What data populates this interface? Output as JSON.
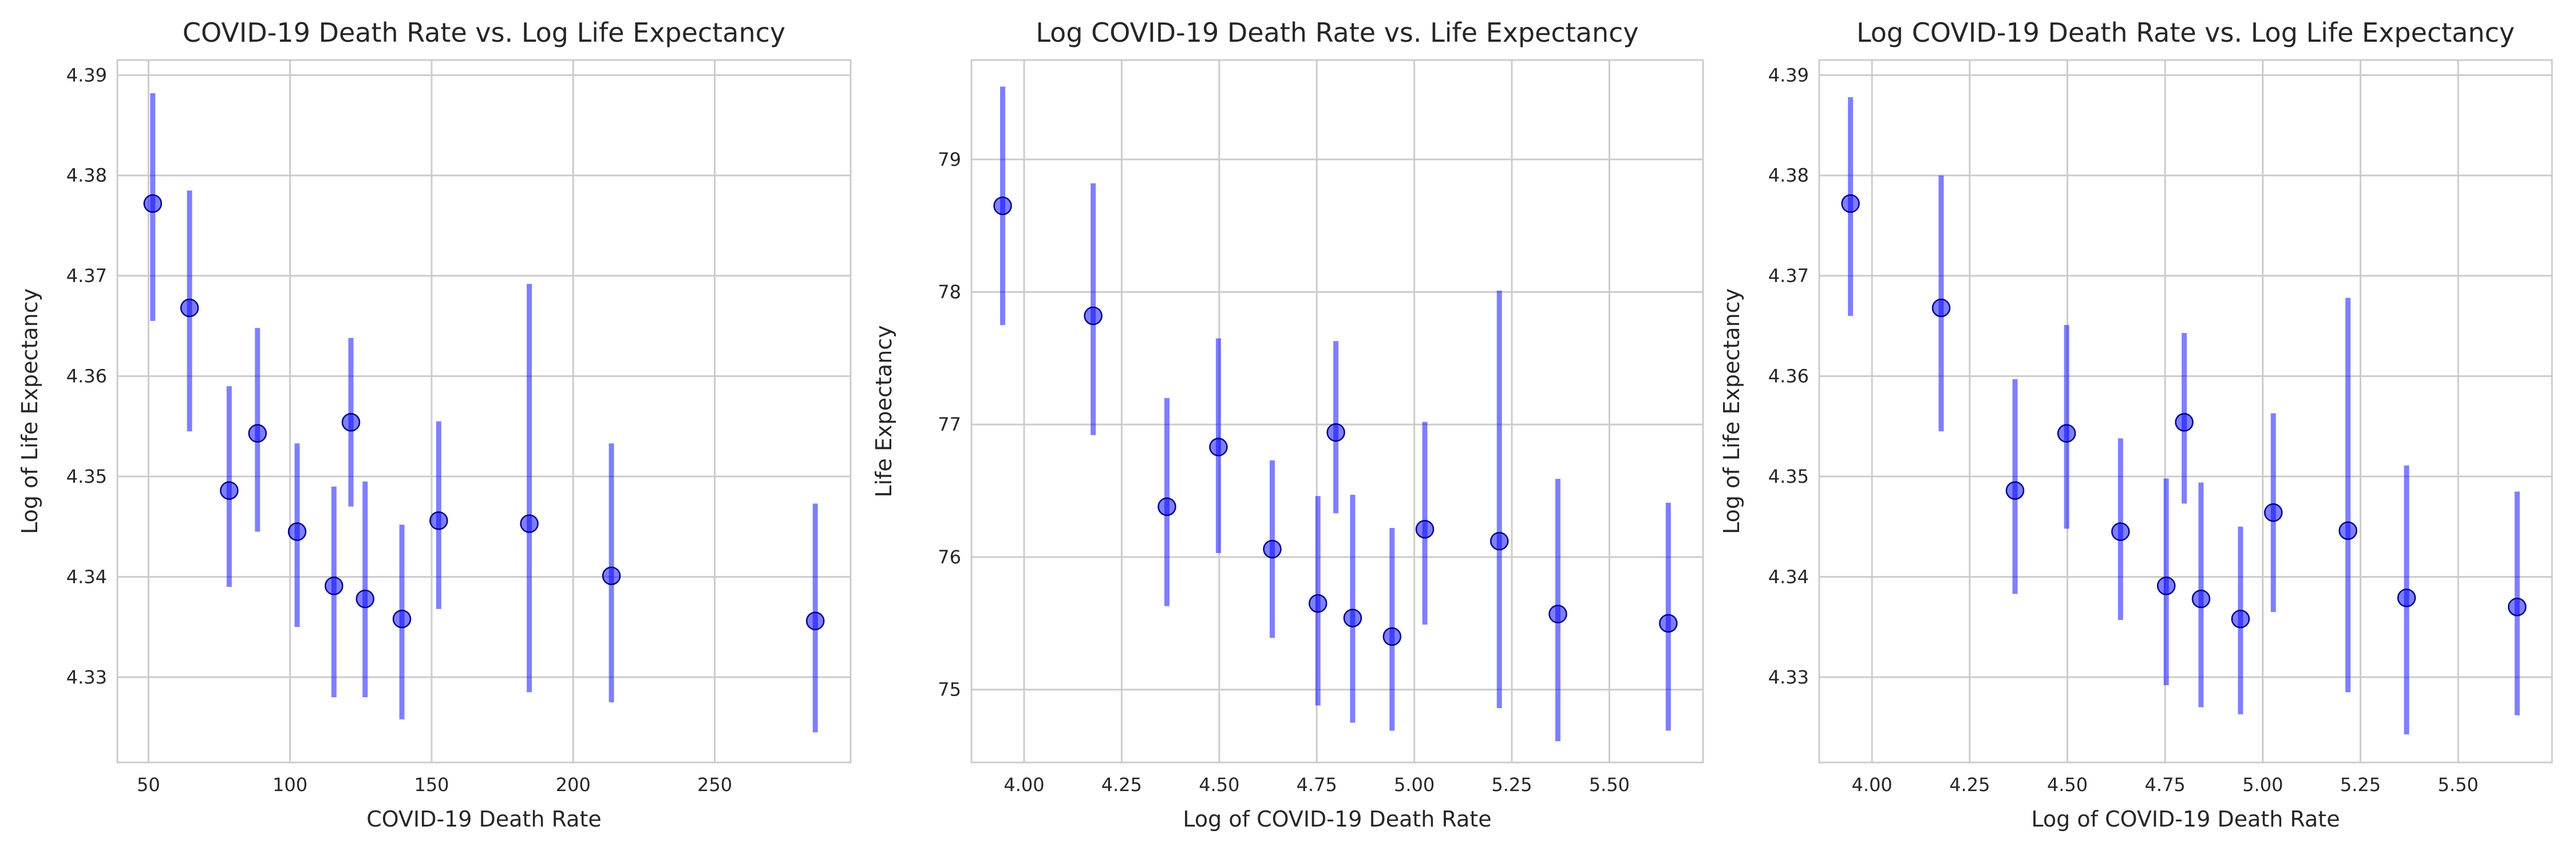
{
  "chart_data": [
    {
      "type": "scatter",
      "title": "COVID-19 Death Rate vs. Log Life Expectancy",
      "xlabel": "COVID-19 Death Rate",
      "ylabel": "Log of Life Expectancy",
      "xlim": [
        39,
        298
      ],
      "ylim": [
        4.3215,
        4.3915
      ],
      "xticks": [
        50,
        100,
        150,
        200,
        250
      ],
      "xtick_labels": [
        "50",
        "100",
        "150",
        "200",
        "250"
      ],
      "yticks": [
        4.33,
        4.34,
        4.35,
        4.36,
        4.37,
        4.38,
        4.39
      ],
      "ytick_labels": [
        "4.33",
        "4.34",
        "4.35",
        "4.36",
        "4.37",
        "4.38",
        "4.39"
      ],
      "grid": true,
      "points": [
        {
          "x": 51.5,
          "y": 4.3772,
          "err_low": 4.3655,
          "err_high": 4.3882
        },
        {
          "x": 64.5,
          "y": 4.3668,
          "err_low": 4.3545,
          "err_high": 4.3785
        },
        {
          "x": 78.5,
          "y": 4.3486,
          "err_low": 4.339,
          "err_high": 4.359
        },
        {
          "x": 88.5,
          "y": 4.3543,
          "err_low": 4.3445,
          "err_high": 4.3648
        },
        {
          "x": 102.5,
          "y": 4.3445,
          "err_low": 4.335,
          "err_high": 4.3533
        },
        {
          "x": 115.5,
          "y": 4.3391,
          "err_low": 4.328,
          "err_high": 4.349
        },
        {
          "x": 121.5,
          "y": 4.3554,
          "err_low": 4.347,
          "err_high": 4.3638
        },
        {
          "x": 126.5,
          "y": 4.3378,
          "err_low": 4.328,
          "err_high": 4.3495
        },
        {
          "x": 139.5,
          "y": 4.3358,
          "err_low": 4.3258,
          "err_high": 4.3452
        },
        {
          "x": 152.5,
          "y": 4.3456,
          "err_low": 4.3368,
          "err_high": 4.3555
        },
        {
          "x": 184.5,
          "y": 4.3453,
          "err_low": 4.3285,
          "err_high": 4.3692
        },
        {
          "x": 213.5,
          "y": 4.3401,
          "err_low": 4.3275,
          "err_high": 4.3533
        },
        {
          "x": 285.5,
          "y": 4.3356,
          "err_low": 4.3245,
          "err_high": 4.3473
        }
      ]
    },
    {
      "type": "scatter",
      "title": "Log COVID-19 Death Rate vs. Life Expectancy",
      "xlabel": "Log of COVID-19 Death Rate",
      "ylabel": "Life Expectancy",
      "xlim": [
        3.865,
        5.74
      ],
      "ylim": [
        74.45,
        79.75
      ],
      "xticks": [
        4.0,
        4.25,
        4.5,
        4.75,
        5.0,
        5.25,
        5.5
      ],
      "xtick_labels": [
        "4.00",
        "4.25",
        "4.50",
        "4.75",
        "5.00",
        "5.25",
        "5.50"
      ],
      "yticks": [
        75,
        76,
        77,
        78,
        79
      ],
      "ytick_labels": [
        "75",
        "76",
        "77",
        "78",
        "79"
      ],
      "grid": true,
      "points": [
        {
          "x": 3.945,
          "y": 78.65,
          "err_low": 77.75,
          "err_high": 79.55
        },
        {
          "x": 4.177,
          "y": 77.82,
          "err_low": 76.92,
          "err_high": 78.82
        },
        {
          "x": 4.366,
          "y": 76.38,
          "err_low": 75.63,
          "err_high": 77.2
        },
        {
          "x": 4.498,
          "y": 76.83,
          "err_low": 76.03,
          "err_high": 77.65
        },
        {
          "x": 4.636,
          "y": 76.06,
          "err_low": 75.39,
          "err_high": 76.73
        },
        {
          "x": 4.753,
          "y": 75.65,
          "err_low": 74.88,
          "err_high": 76.46
        },
        {
          "x": 4.799,
          "y": 76.94,
          "err_low": 76.33,
          "err_high": 77.63
        },
        {
          "x": 4.842,
          "y": 75.54,
          "err_low": 74.75,
          "err_high": 76.47
        },
        {
          "x": 4.943,
          "y": 75.4,
          "err_low": 74.69,
          "err_high": 76.22
        },
        {
          "x": 5.027,
          "y": 76.21,
          "err_low": 75.49,
          "err_high": 77.02
        },
        {
          "x": 5.218,
          "y": 76.12,
          "err_low": 74.86,
          "err_high": 78.01
        },
        {
          "x": 5.368,
          "y": 75.57,
          "err_low": 74.61,
          "err_high": 76.59
        },
        {
          "x": 5.651,
          "y": 75.5,
          "err_low": 74.69,
          "err_high": 76.41
        }
      ]
    },
    {
      "type": "scatter",
      "title": "Log COVID-19 Death Rate vs. Log Life Expectancy",
      "xlabel": "Log of COVID-19 Death Rate",
      "ylabel": "Log of Life Expectancy",
      "xlim": [
        3.865,
        5.74
      ],
      "ylim": [
        4.3215,
        4.3915
      ],
      "xticks": [
        4.0,
        4.25,
        4.5,
        4.75,
        5.0,
        5.25,
        5.5
      ],
      "xtick_labels": [
        "4.00",
        "4.25",
        "4.50",
        "4.75",
        "5.00",
        "5.25",
        "5.50"
      ],
      "yticks": [
        4.33,
        4.34,
        4.35,
        4.36,
        4.37,
        4.38,
        4.39
      ],
      "ytick_labels": [
        "4.33",
        "4.34",
        "4.35",
        "4.36",
        "4.37",
        "4.38",
        "4.39"
      ],
      "grid": true,
      "points": [
        {
          "x": 3.945,
          "y": 4.3772,
          "err_low": 4.366,
          "err_high": 4.3878
        },
        {
          "x": 4.177,
          "y": 4.3668,
          "err_low": 4.3545,
          "err_high": 4.38
        },
        {
          "x": 4.366,
          "y": 4.3486,
          "err_low": 4.3383,
          "err_high": 4.3597
        },
        {
          "x": 4.498,
          "y": 4.3543,
          "err_low": 4.3448,
          "err_high": 4.3651
        },
        {
          "x": 4.636,
          "y": 4.3445,
          "err_low": 4.3357,
          "err_high": 4.3538
        },
        {
          "x": 4.753,
          "y": 4.3391,
          "err_low": 4.3292,
          "err_high": 4.3498
        },
        {
          "x": 4.799,
          "y": 4.3554,
          "err_low": 4.3473,
          "err_high": 4.3643
        },
        {
          "x": 4.842,
          "y": 4.3378,
          "err_low": 4.327,
          "err_high": 4.3494
        },
        {
          "x": 4.943,
          "y": 4.3358,
          "err_low": 4.3263,
          "err_high": 4.345
        },
        {
          "x": 5.027,
          "y": 4.3464,
          "err_low": 4.3365,
          "err_high": 4.3563
        },
        {
          "x": 5.218,
          "y": 4.3446,
          "err_low": 4.3285,
          "err_high": 4.3678
        },
        {
          "x": 5.368,
          "y": 4.3379,
          "err_low": 4.3243,
          "err_high": 4.3511
        },
        {
          "x": 5.651,
          "y": 4.337,
          "err_low": 4.3262,
          "err_high": 4.3485
        }
      ]
    }
  ],
  "style": {
    "marker_color": "#0000ff",
    "marker_edge_color": "#00008b",
    "grid_color": "#cccccc",
    "spine_color": "#cccccc",
    "text_color": "#262626"
  }
}
